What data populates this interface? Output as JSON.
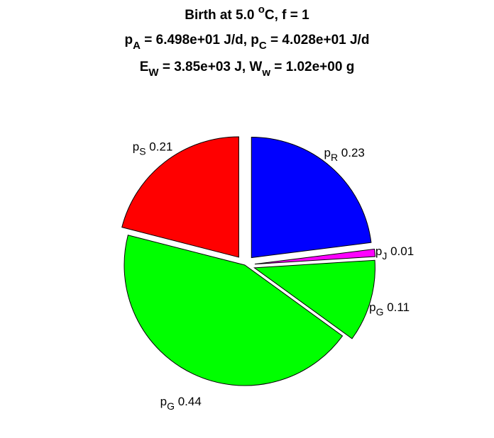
{
  "chart_data": {
    "type": "pie",
    "title_lines": [
      {
        "parts": [
          {
            "t": "Birth at 5.0 "
          },
          {
            "t": "o",
            "sup": true
          },
          {
            "t": "C, f = 1"
          }
        ]
      },
      {
        "parts": [
          {
            "t": "p"
          },
          {
            "t": "A",
            "sub": true
          },
          {
            "t": " = 6.498e+01 J/d, p"
          },
          {
            "t": "C",
            "sub": true
          },
          {
            "t": " = 4.028e+01 J/d"
          }
        ]
      },
      {
        "parts": [
          {
            "t": "E"
          },
          {
            "t": "W",
            "sub": true
          },
          {
            "t": " = 3.85e+03 J, W"
          },
          {
            "t": "w",
            "sub": true
          },
          {
            "t": " = 1.02e+00 g"
          }
        ]
      }
    ],
    "slices": [
      {
        "symbol": "p",
        "sub": "R",
        "value": 0.23,
        "value_label": "0.23",
        "color": "#0000ff",
        "exploded": true
      },
      {
        "symbol": "p",
        "sub": "J",
        "value": 0.01,
        "value_label": "0.01",
        "color": "#ff00ff",
        "exploded": true
      },
      {
        "symbol": "p",
        "sub": "G",
        "value": 0.11,
        "value_label": "0.11",
        "color": "#00ff00",
        "exploded": true
      },
      {
        "symbol": "p",
        "sub": "G",
        "value": 0.44,
        "value_label": "0.44",
        "color": "#00ff00",
        "exploded": false
      },
      {
        "symbol": "p",
        "sub": "S",
        "value": 0.21,
        "value_label": "0.21",
        "color": "#ff0000",
        "exploded": true
      }
    ]
  }
}
